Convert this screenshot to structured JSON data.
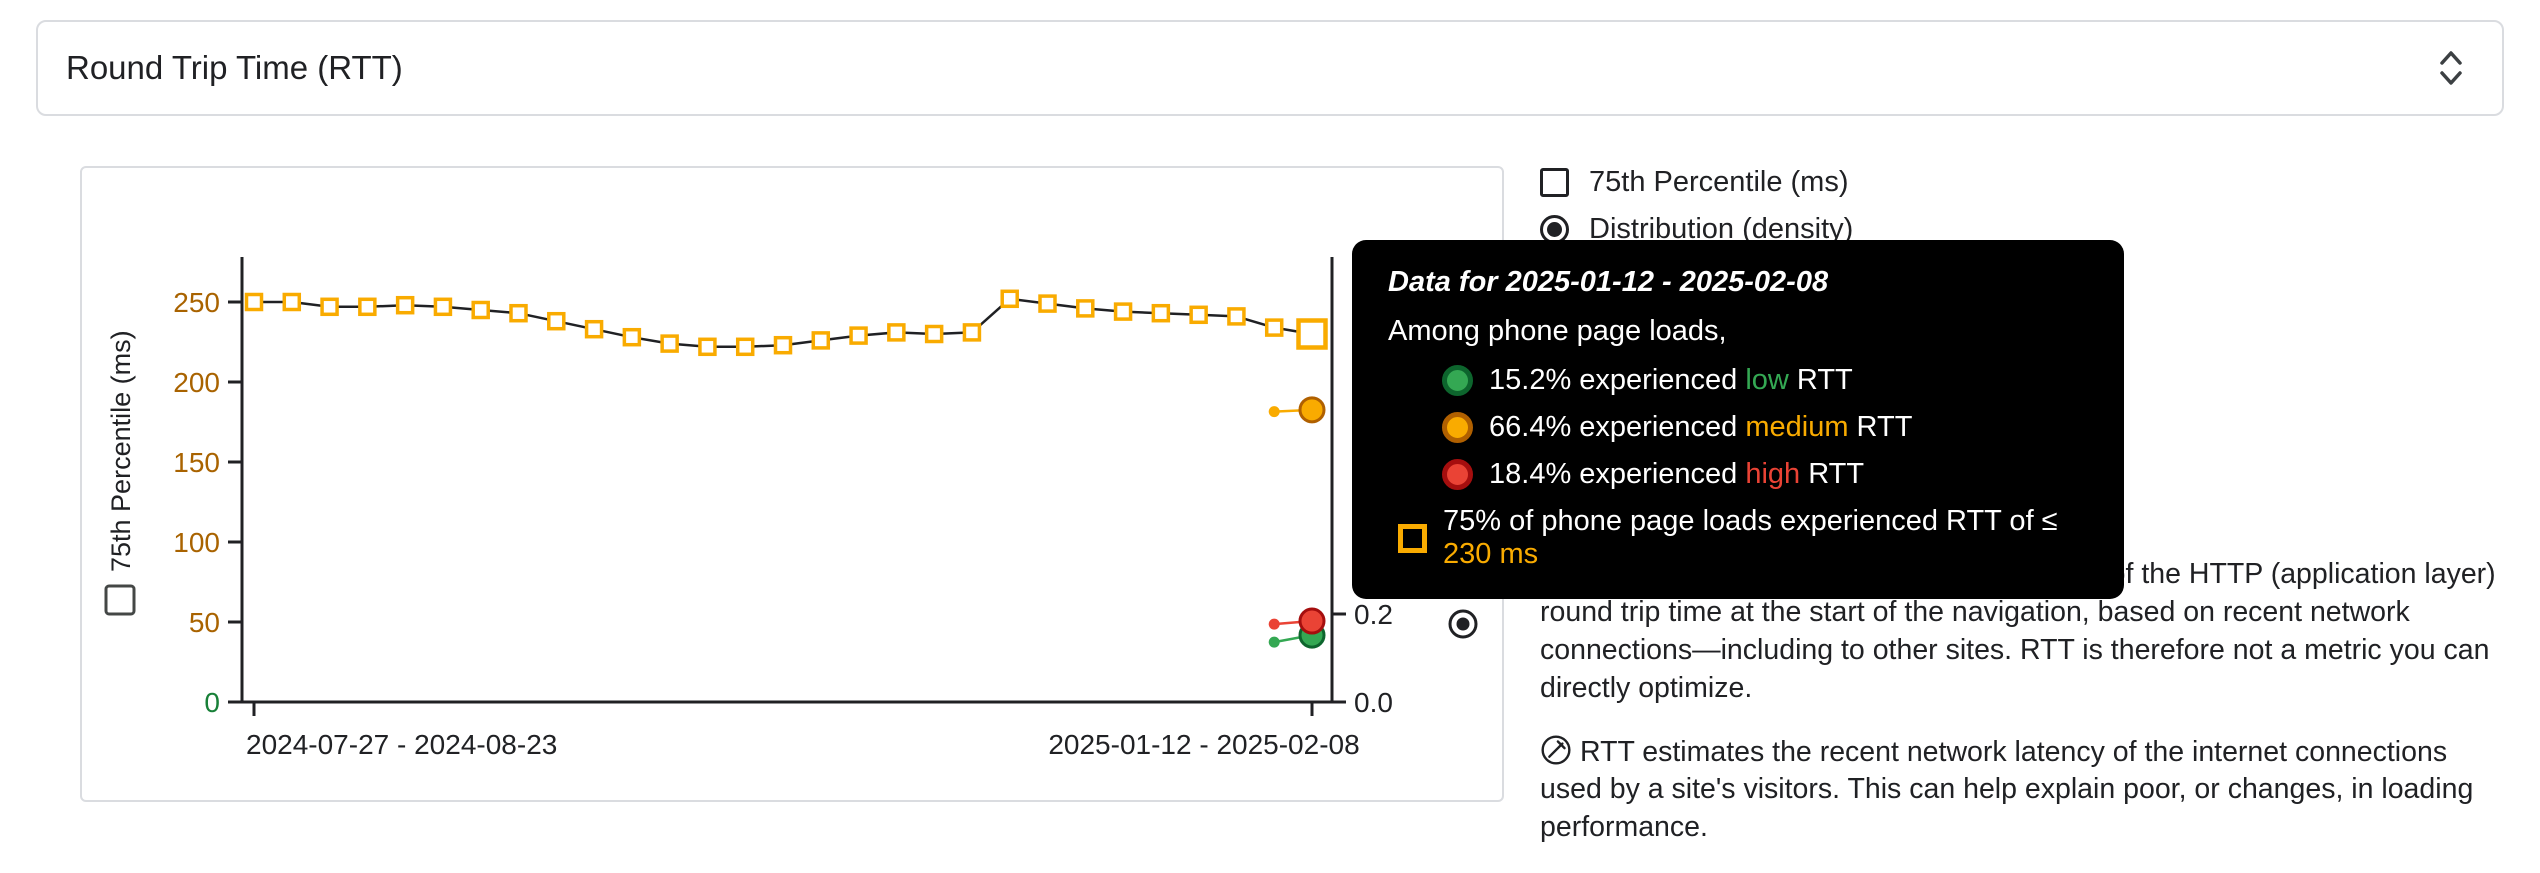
{
  "metric_selector": {
    "label": "Round Trip Time (RTT)"
  },
  "legend": {
    "items": [
      {
        "label": "75th Percentile (ms)",
        "type": "checkbox",
        "checked": false
      },
      {
        "label": "Distribution (density)",
        "type": "radio",
        "checked": true
      }
    ]
  },
  "chart_data": {
    "type": "line",
    "title": "Round Trip Time (RTT)",
    "x_tick_labels": [
      "2024-07-27 - 2024-08-23",
      "2025-01-12 - 2025-02-08"
    ],
    "left_axis": {
      "label": "75th Percentile (ms)",
      "tick_values": [
        250,
        200,
        150,
        100,
        50,
        0
      ],
      "tick_color": "#a96300",
      "zero_tick_color": "#188038",
      "range": [
        0,
        278
      ]
    },
    "right_axis": {
      "label": "Distribution (density)",
      "tick_values": [
        0.2,
        0.0
      ],
      "range": [
        0,
        0.2
      ]
    },
    "p75_series": {
      "name": "75th Percentile (ms)",
      "marker": "open-square",
      "marker_color": "#f9ab00",
      "line_color": "#202124",
      "values": [
        250,
        250,
        247,
        247,
        248,
        247,
        245,
        243,
        238,
        233,
        228,
        224,
        222,
        222,
        223,
        226,
        229,
        231,
        230,
        231,
        252,
        249,
        246,
        244,
        243,
        242,
        241,
        234,
        230
      ]
    },
    "density_series": [
      {
        "name": "low",
        "color": "#34a853",
        "ring": "#0d652d",
        "values": [
          0.136,
          0.152
        ]
      },
      {
        "name": "medium",
        "color": "#f9ab00",
        "ring": "#b06000",
        "values": [
          0.66,
          0.664
        ]
      },
      {
        "name": "high",
        "color": "#ea4335",
        "ring": "#a50e0e",
        "values": [
          0.177,
          0.184
        ]
      }
    ]
  },
  "tooltip": {
    "title": "Data for 2025-01-12 - 2025-02-08",
    "subtitle": "Among phone page loads,",
    "rows": [
      {
        "pre": "15.2% experienced ",
        "word": "low",
        "post": " RTT",
        "color": "#34a853",
        "ring": "#0d652d"
      },
      {
        "pre": "66.4% experienced ",
        "word": "medium",
        "post": " RTT",
        "color": "#f9ab00",
        "ring": "#b06000"
      },
      {
        "pre": "18.4% experienced ",
        "word": "high",
        "post": " RTT",
        "color": "#ea4335",
        "ring": "#a50e0e"
      }
    ],
    "p75_row": {
      "prefix": "75% of phone page loads experienced RTT of ≤ ",
      "value": "230 ms",
      "color": "#f9ab00"
    }
  },
  "description": {
    "p1_link": "Round Trip Time (RTT)",
    "p1_rest": " provides an estimate of the HTTP (application layer) round trip time at the start of the navigation, based on recent network connections—including to other sites. RTT is therefore not a metric you can directly optimize.",
    "p2": "RTT estimates the recent network latency of the internet connections used by a site's visitors. This can help explain poor, or changes, in loading performance."
  }
}
